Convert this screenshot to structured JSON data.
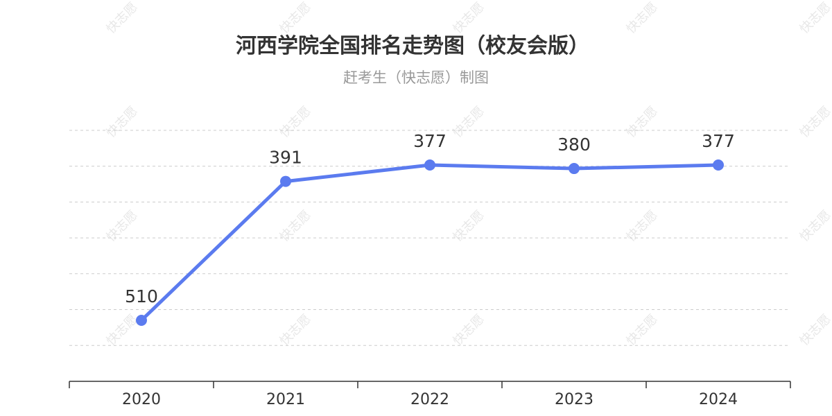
{
  "title": "河西学院全国排名走势图（校友会版）",
  "subtitle": "赶考生（快志愿）制图",
  "watermark": "快志愿",
  "colors": {
    "series": "#5b7bef",
    "grid": "#cccccc",
    "text": "#333333",
    "subtitle": "#999999"
  },
  "chart_data": {
    "type": "line",
    "title": "河西学院全国排名走势图（校友会版）",
    "subtitle": "赶考生（快志愿）制图",
    "categories": [
      "2020",
      "2021",
      "2022",
      "2023",
      "2024"
    ],
    "series": [
      {
        "values": [
          510,
          391,
          377,
          380,
          377
        ]
      }
    ],
    "y_inverted": true,
    "ylim": [
      570,
      350
    ],
    "y_gridlines": 7,
    "grid": true,
    "data_labels": true,
    "legend": "none",
    "xlabel": "",
    "ylabel": ""
  }
}
